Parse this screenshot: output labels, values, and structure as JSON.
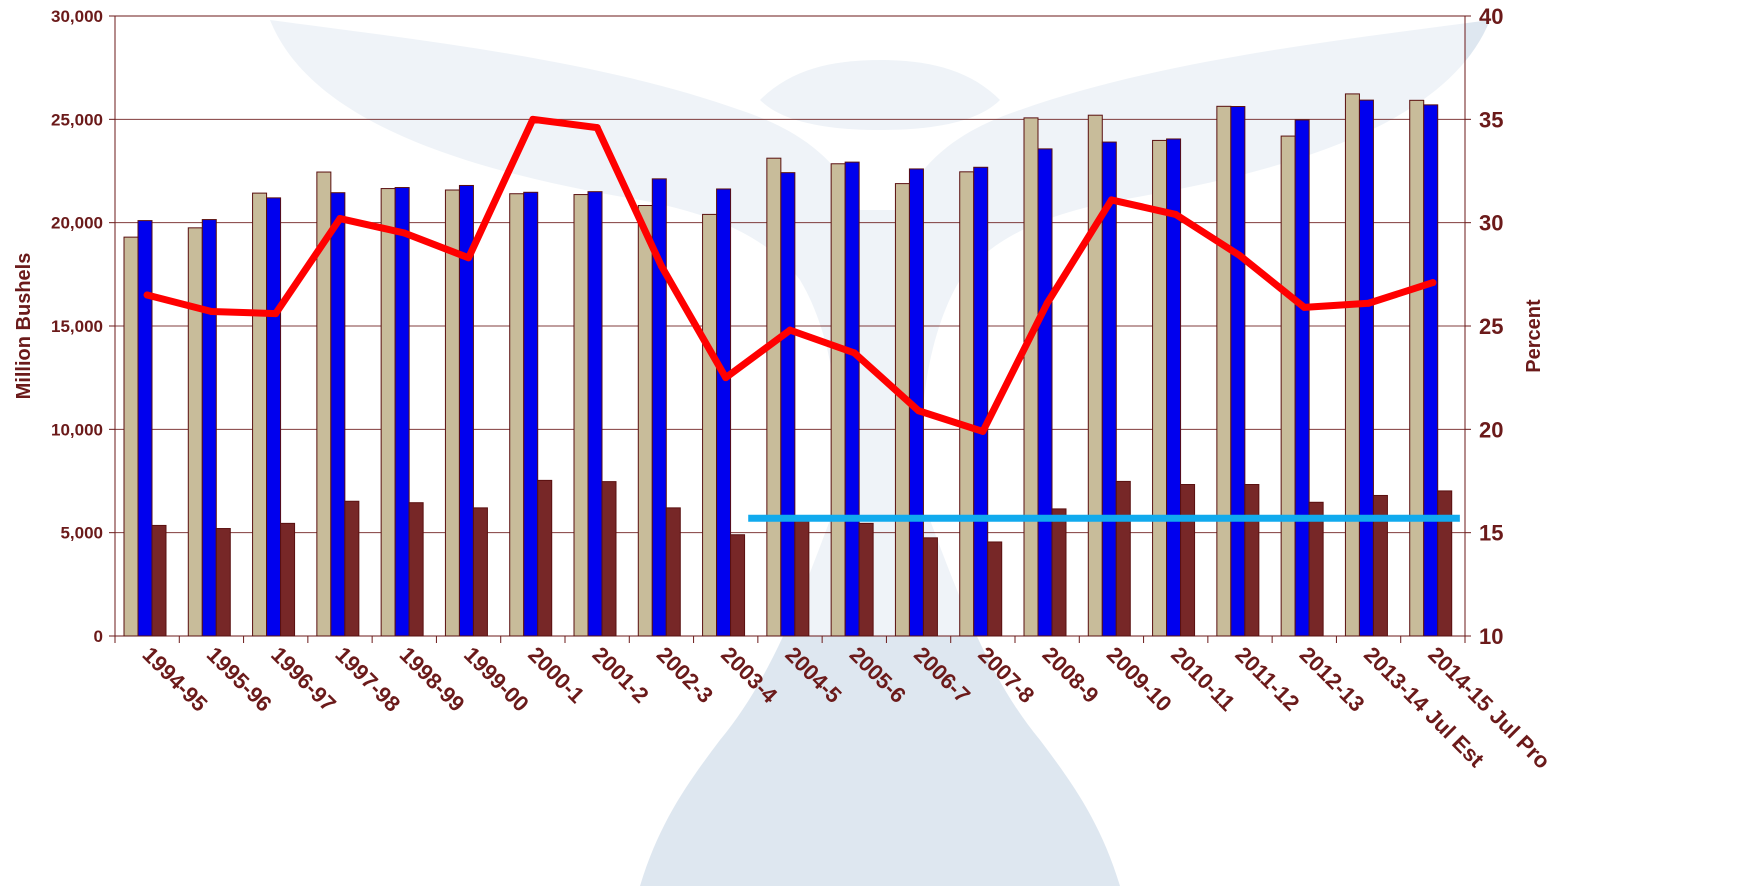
{
  "chart_data": {
    "type": "bar",
    "categories": [
      "1994-95",
      "1995-96",
      "1996-97",
      "1997-98",
      "1998-99",
      "1999-00",
      "2000-1",
      "2001-2",
      "2002-3",
      "2003-4",
      "2004-5",
      "2005-6",
      "2006-7",
      "2007-8",
      "2008-9",
      "2009-10",
      "2010-11",
      "2011-12",
      "2012-13",
      "2013-14 Jul Est",
      "2014-15 Jul Pro"
    ],
    "series": [
      {
        "values": [
          19300,
          19750,
          21430,
          22450,
          21650,
          21580,
          21400,
          21360,
          20830,
          20400,
          23120,
          22850,
          21890,
          22460,
          25070,
          25200,
          23980,
          25630,
          24190,
          26230,
          25920
        ],
        "color": "#c8bc9a",
        "axis": "left",
        "kind": "bar"
      },
      {
        "values": [
          20100,
          20150,
          21200,
          21450,
          21700,
          21800,
          21470,
          21500,
          22120,
          21630,
          22420,
          22930,
          22600,
          22680,
          23570,
          23900,
          24050,
          25620,
          24970,
          25930,
          25700
        ],
        "color": "#0000ee",
        "axis": "left",
        "kind": "bar"
      },
      {
        "values": [
          5350,
          5200,
          5450,
          6520,
          6450,
          6200,
          7530,
          7470,
          6200,
          4900,
          5650,
          5450,
          4750,
          4550,
          6150,
          7480,
          7330,
          7330,
          6470,
          6800,
          7020
        ],
        "color": "#772727",
        "axis": "left",
        "kind": "bar"
      },
      {
        "values": [
          26.5,
          25.7,
          25.6,
          30.2,
          29.5,
          28.3,
          35.0,
          34.6,
          27.9,
          22.5,
          24.8,
          23.7,
          20.9,
          19.9,
          26.1,
          31.1,
          30.4,
          28.4,
          25.9,
          26.1,
          27.1
        ],
        "color": "#ff0000",
        "axis": "right",
        "kind": "line"
      },
      {
        "x_start": "2003-4",
        "x_end": "2014-15 Jul Pro",
        "value": 15.7,
        "color": "#11aaee",
        "axis": "right",
        "kind": "hline"
      }
    ],
    "ylabel": "Million Bushels",
    "y2label": "Percent",
    "ylim": [
      0,
      30000
    ],
    "y2lim": [
      10,
      40
    ],
    "yticks": [
      "0",
      "5,000",
      "10,000",
      "15,000",
      "20,000",
      "25,000",
      "30,000"
    ],
    "y2ticks": [
      "10",
      "15",
      "20",
      "25",
      "30",
      "35",
      "40"
    ],
    "grid": true,
    "legend": "none"
  },
  "colors": {
    "text": "#6b1a1a",
    "grid": "#6b1a1a",
    "plot_background": "#ffffff",
    "watermark": "#a9c1d8"
  }
}
